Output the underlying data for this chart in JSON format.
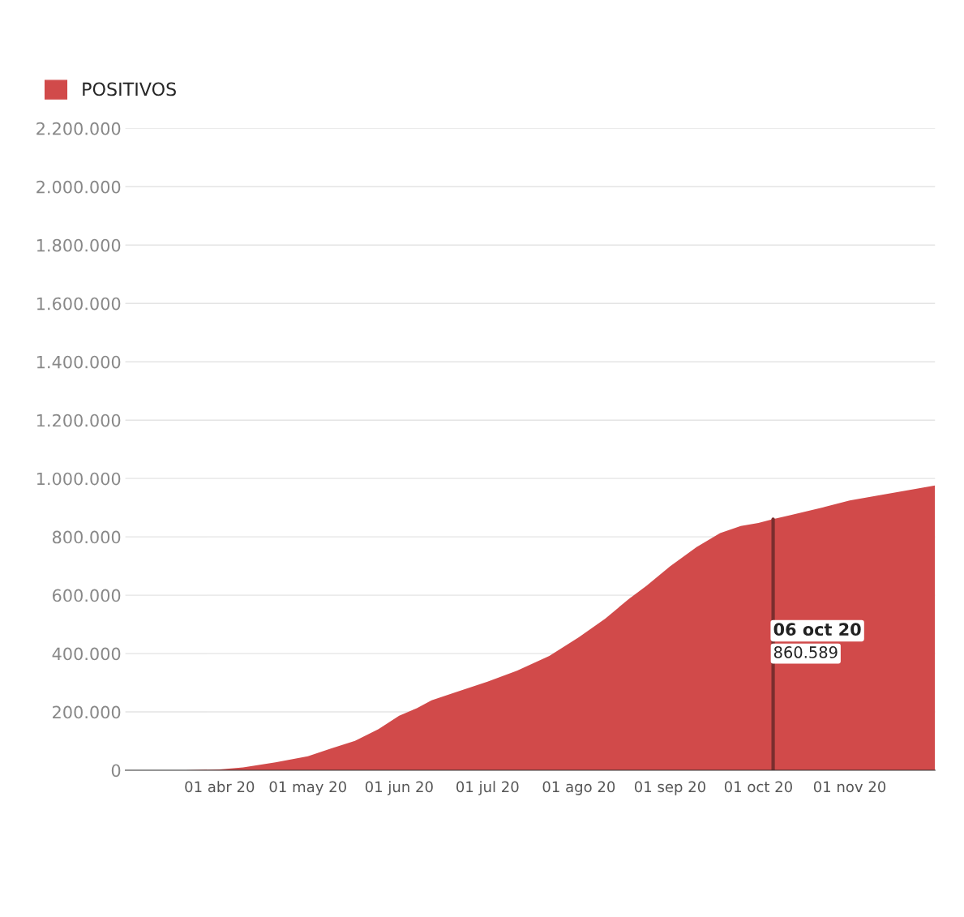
{
  "chart_data": {
    "type": "area",
    "x": [
      "2020-02-29",
      "2020-03-20",
      "2020-04-01",
      "2020-04-09",
      "2020-04-20",
      "2020-05-01",
      "2020-05-09",
      "2020-05-17",
      "2020-05-25",
      "2020-06-01",
      "2020-06-07",
      "2020-06-12",
      "2020-06-20",
      "2020-07-01",
      "2020-07-11",
      "2020-07-22",
      "2020-08-01",
      "2020-08-10",
      "2020-08-18",
      "2020-08-24",
      "2020-09-01",
      "2020-09-10",
      "2020-09-18",
      "2020-09-25",
      "2020-10-01",
      "2020-10-06",
      "2020-10-12",
      "2020-10-23",
      "2020-11-01",
      "2020-11-10",
      "2020-11-21",
      "2020-11-30"
    ],
    "series": [
      {
        "name": "POSITIVOS",
        "color": "#d14a4a",
        "values": [
          0,
          0,
          3000,
          10000,
          27000,
          48000,
          75000,
          101000,
          141000,
          187000,
          213000,
          240000,
          267000,
          304000,
          341000,
          392000,
          456000,
          520000,
          587000,
          632000,
          699000,
          765000,
          813000,
          837000,
          848000,
          860589,
          875000,
          901000,
          925000,
          941000,
          960000,
          976000
        ]
      }
    ],
    "xlim": [
      "2020-02-29",
      "2020-11-30"
    ],
    "xticks": [
      {
        "value": "2020-04-01",
        "label": "01 abr 20"
      },
      {
        "value": "2020-05-01",
        "label": "01 may 20"
      },
      {
        "value": "2020-06-01",
        "label": "01 jun 20"
      },
      {
        "value": "2020-07-01",
        "label": "01 jul 20"
      },
      {
        "value": "2020-08-01",
        "label": "01 ago 20"
      },
      {
        "value": "2020-09-01",
        "label": "01 sep 20"
      },
      {
        "value": "2020-10-01",
        "label": "01 oct 20"
      },
      {
        "value": "2020-11-01",
        "label": "01 nov 20"
      }
    ],
    "ylim": [
      0,
      2200000
    ],
    "yticks": [
      {
        "value": 0,
        "label": "0"
      },
      {
        "value": 200000,
        "label": "200.000"
      },
      {
        "value": 400000,
        "label": "400.000"
      },
      {
        "value": 600000,
        "label": "600.000"
      },
      {
        "value": 800000,
        "label": "800.000"
      },
      {
        "value": 1000000,
        "label": "1.000.000"
      },
      {
        "value": 1200000,
        "label": "1.200.000"
      },
      {
        "value": 1400000,
        "label": "1.400.000"
      },
      {
        "value": 1600000,
        "label": "1.600.000"
      },
      {
        "value": 1800000,
        "label": "1.800.000"
      },
      {
        "value": 2000000,
        "label": "2.000.000"
      },
      {
        "value": 2200000,
        "label": "2.200.000"
      }
    ],
    "grid": "y",
    "legend": "top left",
    "ref_lines": [
      {
        "axis": "x",
        "value": "2020-10-06",
        "color": "#7a2e2e"
      }
    ],
    "annotations": [
      "06 oct 20",
      "860.589"
    ]
  }
}
